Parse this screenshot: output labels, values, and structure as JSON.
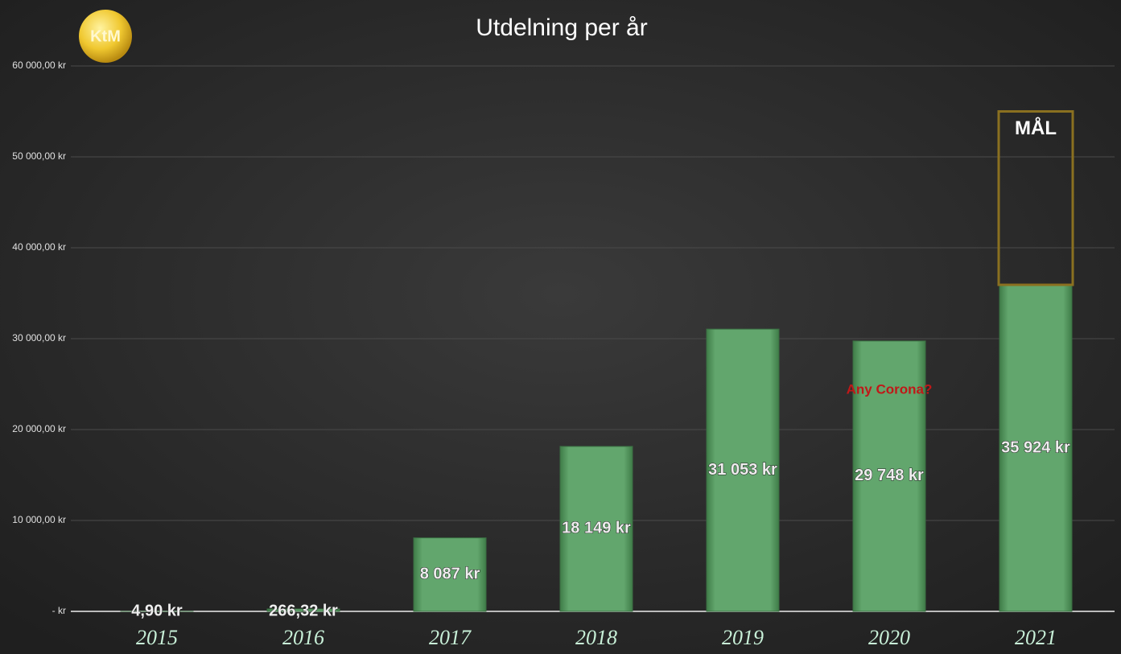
{
  "chart_data": {
    "type": "bar",
    "title": "Utdelning per år",
    "logo": "KtM",
    "categories": [
      "2015",
      "2016",
      "2017",
      "2018",
      "2019",
      "2020",
      "2021"
    ],
    "values": [
      4.9,
      266.32,
      8087,
      18149,
      31053,
      29748,
      35924
    ],
    "value_labels": [
      "4,90 kr",
      "266,32 kr",
      "8 087 kr",
      "18 149 kr",
      "31 053 kr",
      "29 748 kr",
      "35 924 kr"
    ],
    "color": "#5fa36a",
    "ylim": [
      0,
      60000
    ],
    "yticks": [
      {
        "value": 0,
        "label": "-   kr"
      },
      {
        "value": 10000,
        "label": "10 000,00 kr"
      },
      {
        "value": 20000,
        "label": "20 000,00 kr"
      },
      {
        "value": 30000,
        "label": "30 000,00 kr"
      },
      {
        "value": 40000,
        "label": "40 000,00 kr"
      },
      {
        "value": 50000,
        "label": "50 000,00 kr"
      },
      {
        "value": 60000,
        "label": "60 000,00 kr"
      }
    ],
    "grid": true,
    "goal": {
      "label": "MÅL",
      "value": 55000
    },
    "annotation": "Any Corona?"
  }
}
